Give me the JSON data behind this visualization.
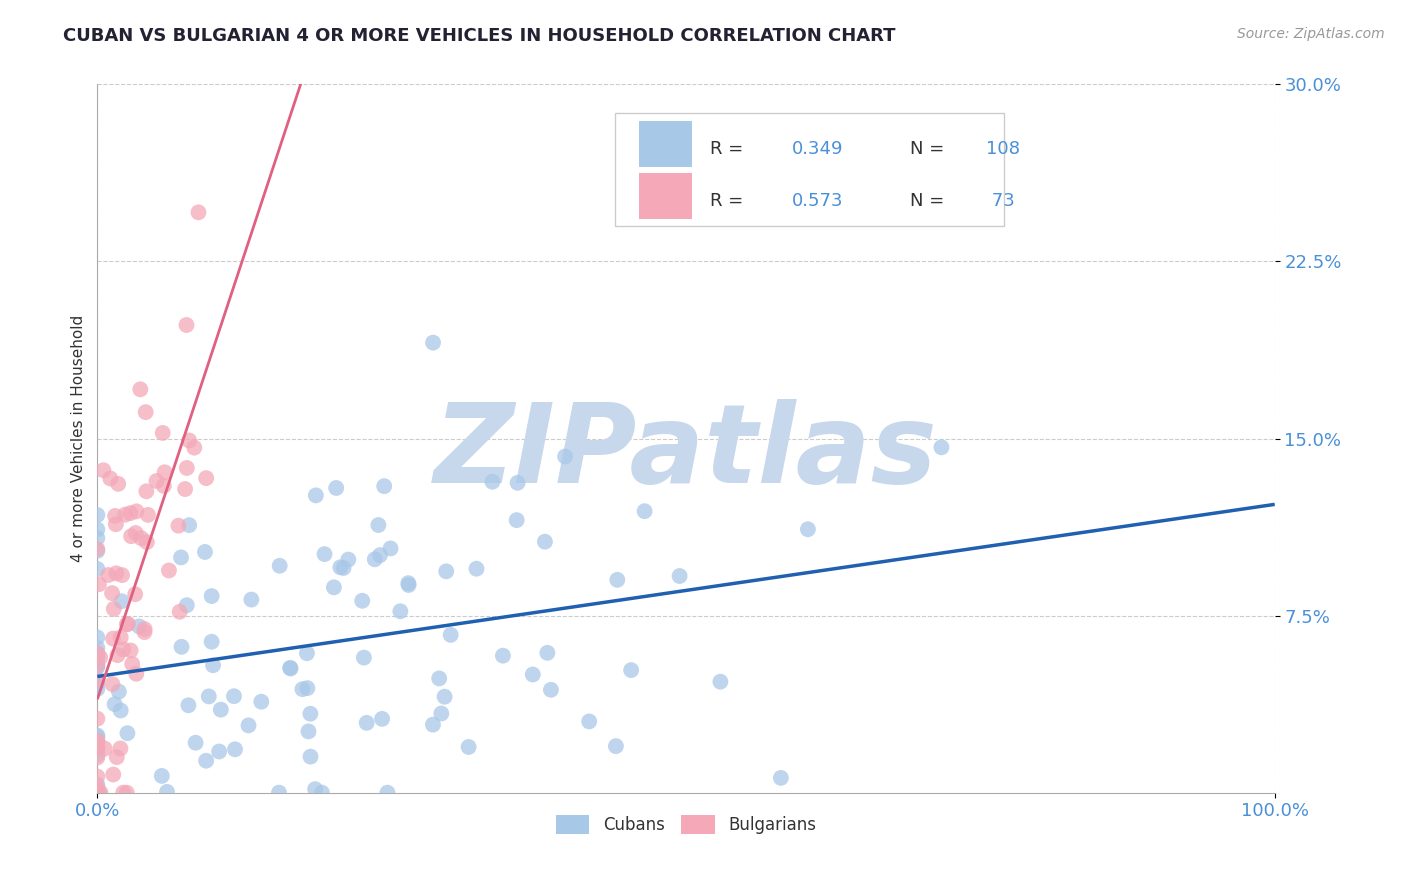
{
  "title": "CUBAN VS BULGARIAN 4 OR MORE VEHICLES IN HOUSEHOLD CORRELATION CHART",
  "source_text": "Source: ZipAtlas.com",
  "ylabel": "4 or more Vehicles in Household",
  "xlim": [
    0,
    100
  ],
  "ylim": [
    0,
    30
  ],
  "xtick_labels": [
    "0.0%",
    "100.0%"
  ],
  "ytick_values": [
    7.5,
    15.0,
    22.5,
    30.0
  ],
  "watermark": "ZIPatlas",
  "cubans_color": "#a8c8e8",
  "bulgarians_color": "#f4a8b8",
  "cubans_line_color": "#2060b0",
  "bulgarians_line_color": "#e06080",
  "background_color": "#ffffff",
  "title_fontsize": 13,
  "watermark_color": "#c8d8ec",
  "grid_color": "#cccccc",
  "tick_label_color": "#4a90d9",
  "axis_label_color": "#333333",
  "legend_text_color": "#333333",
  "source_color": "#999999",
  "cubans_x_mean": 20,
  "cubans_x_std": 18,
  "cubans_y_mean": 7.0,
  "cubans_y_std": 4.0,
  "cubans_R": 0.349,
  "n_cubans": 108,
  "bulgarians_x_mean": 2.5,
  "bulgarians_x_std": 3.0,
  "bulgarians_y_mean": 8.0,
  "bulgarians_y_std": 5.5,
  "bulgarians_R": 0.573,
  "n_bulgarians": 73,
  "cubans_seed": 12,
  "bulgarians_seed": 7
}
